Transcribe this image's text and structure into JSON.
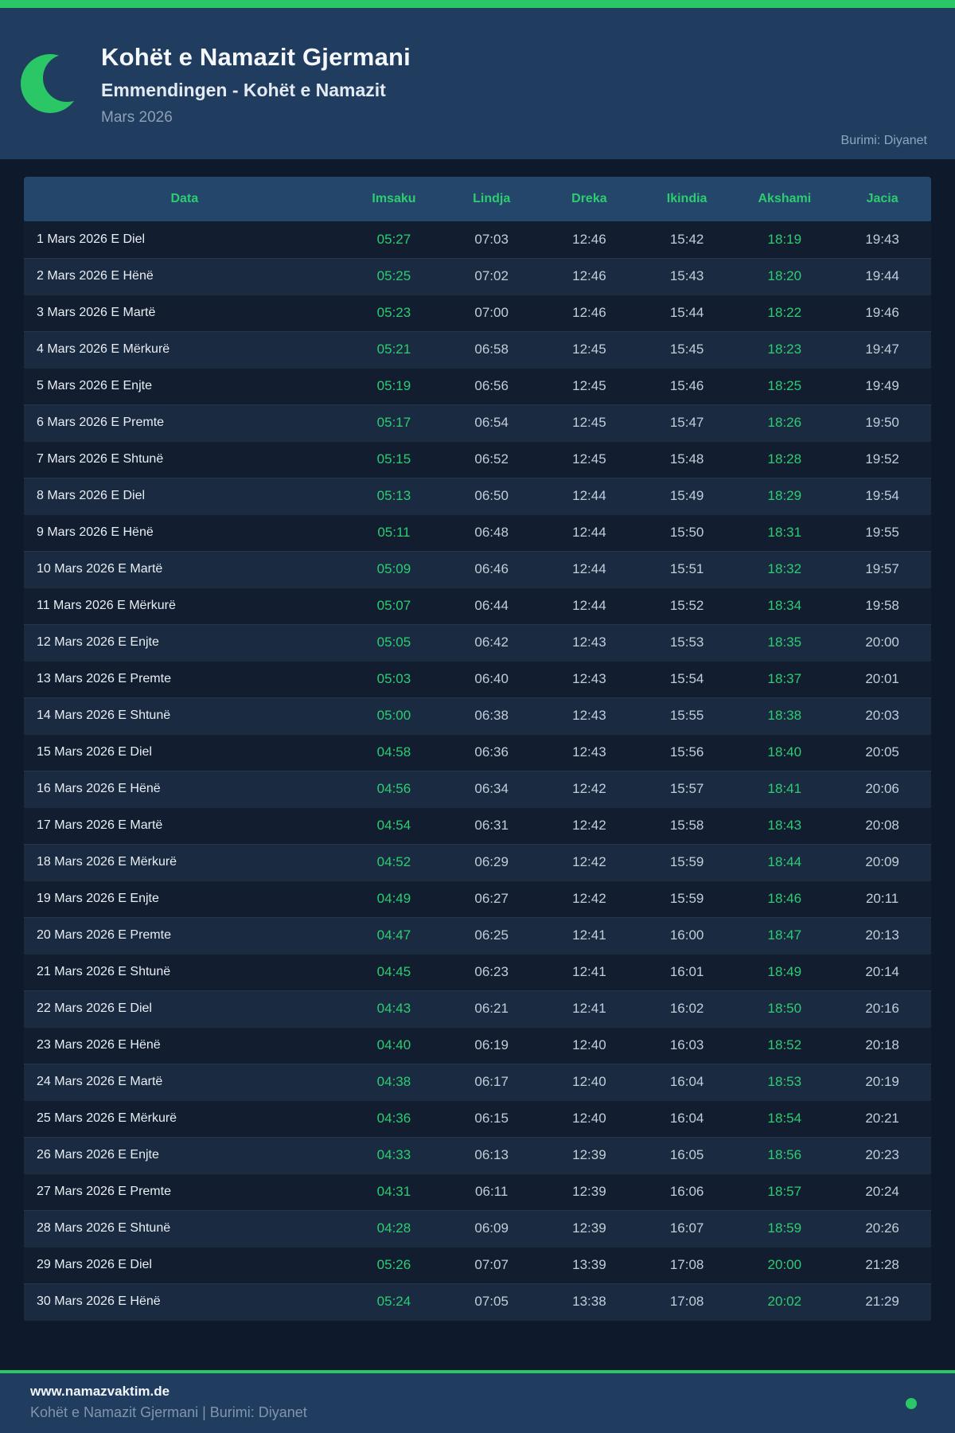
{
  "header": {
    "title": "Kohët e Namazit Gjermani",
    "subtitle": "Emmendingen - Kohët e Namazit",
    "month": "Mars 2026",
    "source": "Burimi: Diyanet"
  },
  "table": {
    "columns": [
      "Data",
      "Imsaku",
      "Lindja",
      "Dreka",
      "Ikindia",
      "Akshami",
      "Jacia"
    ],
    "green_columns": [
      1,
      5
    ],
    "rows": [
      [
        "1 Mars 2026 E Diel",
        "05:27",
        "07:03",
        "12:46",
        "15:42",
        "18:19",
        "19:43"
      ],
      [
        "2 Mars 2026 E Hënë",
        "05:25",
        "07:02",
        "12:46",
        "15:43",
        "18:20",
        "19:44"
      ],
      [
        "3 Mars 2026 E Martë",
        "05:23",
        "07:00",
        "12:46",
        "15:44",
        "18:22",
        "19:46"
      ],
      [
        "4 Mars 2026 E Mërkurë",
        "05:21",
        "06:58",
        "12:45",
        "15:45",
        "18:23",
        "19:47"
      ],
      [
        "5 Mars 2026 E Enjte",
        "05:19",
        "06:56",
        "12:45",
        "15:46",
        "18:25",
        "19:49"
      ],
      [
        "6 Mars 2026 E Premte",
        "05:17",
        "06:54",
        "12:45",
        "15:47",
        "18:26",
        "19:50"
      ],
      [
        "7 Mars 2026 E Shtunë",
        "05:15",
        "06:52",
        "12:45",
        "15:48",
        "18:28",
        "19:52"
      ],
      [
        "8 Mars 2026 E Diel",
        "05:13",
        "06:50",
        "12:44",
        "15:49",
        "18:29",
        "19:54"
      ],
      [
        "9 Mars 2026 E Hënë",
        "05:11",
        "06:48",
        "12:44",
        "15:50",
        "18:31",
        "19:55"
      ],
      [
        "10 Mars 2026 E Martë",
        "05:09",
        "06:46",
        "12:44",
        "15:51",
        "18:32",
        "19:57"
      ],
      [
        "11 Mars 2026 E Mërkurë",
        "05:07",
        "06:44",
        "12:44",
        "15:52",
        "18:34",
        "19:58"
      ],
      [
        "12 Mars 2026 E Enjte",
        "05:05",
        "06:42",
        "12:43",
        "15:53",
        "18:35",
        "20:00"
      ],
      [
        "13 Mars 2026 E Premte",
        "05:03",
        "06:40",
        "12:43",
        "15:54",
        "18:37",
        "20:01"
      ],
      [
        "14 Mars 2026 E Shtunë",
        "05:00",
        "06:38",
        "12:43",
        "15:55",
        "18:38",
        "20:03"
      ],
      [
        "15 Mars 2026 E Diel",
        "04:58",
        "06:36",
        "12:43",
        "15:56",
        "18:40",
        "20:05"
      ],
      [
        "16 Mars 2026 E Hënë",
        "04:56",
        "06:34",
        "12:42",
        "15:57",
        "18:41",
        "20:06"
      ],
      [
        "17 Mars 2026 E Martë",
        "04:54",
        "06:31",
        "12:42",
        "15:58",
        "18:43",
        "20:08"
      ],
      [
        "18 Mars 2026 E Mërkurë",
        "04:52",
        "06:29",
        "12:42",
        "15:59",
        "18:44",
        "20:09"
      ],
      [
        "19 Mars 2026 E Enjte",
        "04:49",
        "06:27",
        "12:42",
        "15:59",
        "18:46",
        "20:11"
      ],
      [
        "20 Mars 2026 E Premte",
        "04:47",
        "06:25",
        "12:41",
        "16:00",
        "18:47",
        "20:13"
      ],
      [
        "21 Mars 2026 E Shtunë",
        "04:45",
        "06:23",
        "12:41",
        "16:01",
        "18:49",
        "20:14"
      ],
      [
        "22 Mars 2026 E Diel",
        "04:43",
        "06:21",
        "12:41",
        "16:02",
        "18:50",
        "20:16"
      ],
      [
        "23 Mars 2026 E Hënë",
        "04:40",
        "06:19",
        "12:40",
        "16:03",
        "18:52",
        "20:18"
      ],
      [
        "24 Mars 2026 E Martë",
        "04:38",
        "06:17",
        "12:40",
        "16:04",
        "18:53",
        "20:19"
      ],
      [
        "25 Mars 2026 E Mërkurë",
        "04:36",
        "06:15",
        "12:40",
        "16:04",
        "18:54",
        "20:21"
      ],
      [
        "26 Mars 2026 E Enjte",
        "04:33",
        "06:13",
        "12:39",
        "16:05",
        "18:56",
        "20:23"
      ],
      [
        "27 Mars 2026 E Premte",
        "04:31",
        "06:11",
        "12:39",
        "16:06",
        "18:57",
        "20:24"
      ],
      [
        "28 Mars 2026 E Shtunë",
        "04:28",
        "06:09",
        "12:39",
        "16:07",
        "18:59",
        "20:26"
      ],
      [
        "29 Mars 2026 E Diel",
        "05:26",
        "07:07",
        "13:39",
        "17:08",
        "20:00",
        "21:28"
      ],
      [
        "30 Mars 2026 E Hënë",
        "05:24",
        "07:05",
        "13:38",
        "17:08",
        "20:02",
        "21:29"
      ]
    ]
  },
  "footer": {
    "url": "www.namazvaktim.de",
    "caption": "Kohët e Namazit Gjermani | Burimi: Diyanet"
  },
  "colors": {
    "accent_green": "#2bc766",
    "time_green": "#2ecc71",
    "header_bg": "#203c5f",
    "table_header_bg": "#23466a",
    "page_bg": "#0e1a2b",
    "row_odd": "#121e30",
    "row_even": "#1a2b41"
  }
}
